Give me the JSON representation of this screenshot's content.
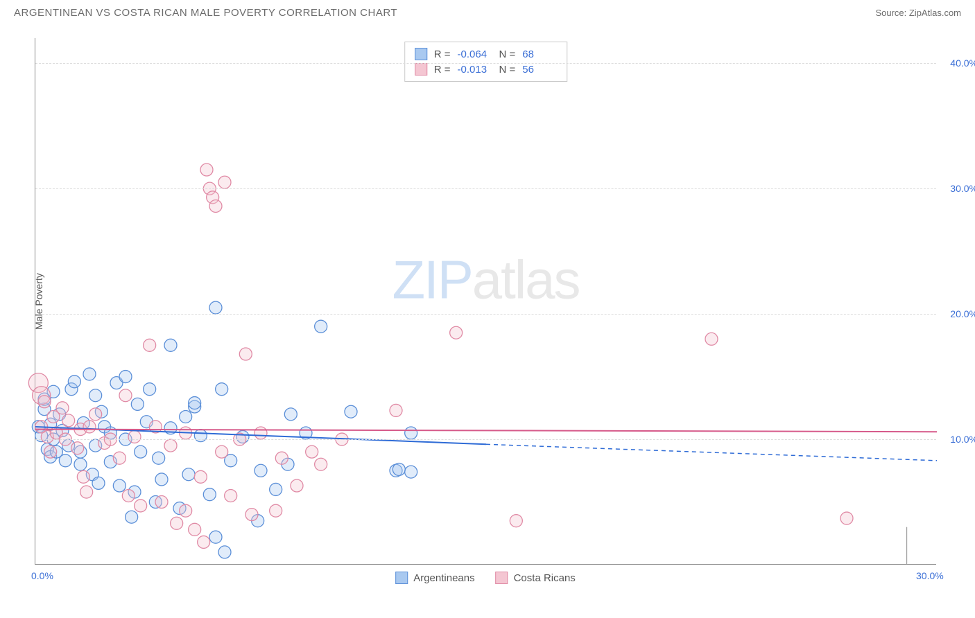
{
  "title": "ARGENTINEAN VS COSTA RICAN MALE POVERTY CORRELATION CHART",
  "source": "Source: ZipAtlas.com",
  "watermark_zip": "ZIP",
  "watermark_atlas": "atlas",
  "y_axis_label": "Male Poverty",
  "chart": {
    "type": "scatter",
    "xlim": [
      0,
      30
    ],
    "ylim": [
      0,
      42
    ],
    "x_ticks": [
      {
        "val": 0,
        "label": "0.0%"
      },
      {
        "val": 30,
        "label": "30.0%"
      }
    ],
    "y_ticks": [
      {
        "val": 10,
        "label": "10.0%"
      },
      {
        "val": 20,
        "label": "20.0%"
      },
      {
        "val": 30,
        "label": "30.0%"
      },
      {
        "val": 40,
        "label": "40.0%"
      }
    ],
    "background_color": "#ffffff",
    "grid_color": "#dcdcdc",
    "marker_radius": 9,
    "marker_fill_opacity": 0.35,
    "marker_stroke_width": 1.3,
    "series": [
      {
        "name": "Argentineans",
        "color_fill": "#a9c9f0",
        "color_stroke": "#5b8fd8",
        "trend": {
          "y1": 11.0,
          "y2_at_x15": 9.6,
          "y_end": 8.3,
          "solid_until_x": 15,
          "color": "#2e6bd6",
          "width": 2
        },
        "stats": {
          "R": "-0.064",
          "N": "68"
        },
        "points": [
          {
            "x": 0.1,
            "y": 11.0
          },
          {
            "x": 0.2,
            "y": 10.3
          },
          {
            "x": 0.3,
            "y": 12.4
          },
          {
            "x": 0.3,
            "y": 13.2
          },
          {
            "x": 0.4,
            "y": 9.2
          },
          {
            "x": 0.5,
            "y": 11.2
          },
          {
            "x": 0.5,
            "y": 8.6
          },
          {
            "x": 0.6,
            "y": 10.0
          },
          {
            "x": 0.6,
            "y": 13.8
          },
          {
            "x": 0.7,
            "y": 9.0
          },
          {
            "x": 0.8,
            "y": 12.0
          },
          {
            "x": 0.9,
            "y": 10.7
          },
          {
            "x": 1.0,
            "y": 8.3
          },
          {
            "x": 1.1,
            "y": 9.5
          },
          {
            "x": 1.2,
            "y": 14.0
          },
          {
            "x": 1.3,
            "y": 14.6
          },
          {
            "x": 1.5,
            "y": 9.0
          },
          {
            "x": 1.5,
            "y": 8.0
          },
          {
            "x": 1.6,
            "y": 11.3
          },
          {
            "x": 1.8,
            "y": 15.2
          },
          {
            "x": 1.9,
            "y": 7.2
          },
          {
            "x": 2.0,
            "y": 13.5
          },
          {
            "x": 2.0,
            "y": 9.5
          },
          {
            "x": 2.1,
            "y": 6.5
          },
          {
            "x": 2.2,
            "y": 12.2
          },
          {
            "x": 2.3,
            "y": 11.0
          },
          {
            "x": 2.5,
            "y": 10.5
          },
          {
            "x": 2.5,
            "y": 8.2
          },
          {
            "x": 2.7,
            "y": 14.5
          },
          {
            "x": 2.8,
            "y": 6.3
          },
          {
            "x": 3.0,
            "y": 15.0
          },
          {
            "x": 3.0,
            "y": 10.0
          },
          {
            "x": 3.2,
            "y": 3.8
          },
          {
            "x": 3.3,
            "y": 5.8
          },
          {
            "x": 3.4,
            "y": 12.8
          },
          {
            "x": 3.5,
            "y": 9.0
          },
          {
            "x": 3.7,
            "y": 11.4
          },
          {
            "x": 3.8,
            "y": 14.0
          },
          {
            "x": 4.0,
            "y": 5.0
          },
          {
            "x": 4.1,
            "y": 8.5
          },
          {
            "x": 4.2,
            "y": 6.8
          },
          {
            "x": 4.5,
            "y": 10.9
          },
          {
            "x": 4.5,
            "y": 17.5
          },
          {
            "x": 4.8,
            "y": 4.5
          },
          {
            "x": 5.0,
            "y": 11.8
          },
          {
            "x": 5.1,
            "y": 7.2
          },
          {
            "x": 5.3,
            "y": 12.6
          },
          {
            "x": 5.3,
            "y": 12.9
          },
          {
            "x": 5.5,
            "y": 10.3
          },
          {
            "x": 5.8,
            "y": 5.6
          },
          {
            "x": 6.0,
            "y": 20.5
          },
          {
            "x": 6.0,
            "y": 2.2
          },
          {
            "x": 6.2,
            "y": 14.0
          },
          {
            "x": 6.3,
            "y": 1.0
          },
          {
            "x": 6.5,
            "y": 8.3
          },
          {
            "x": 6.9,
            "y": 10.2
          },
          {
            "x": 7.4,
            "y": 3.5
          },
          {
            "x": 7.5,
            "y": 7.5
          },
          {
            "x": 8.0,
            "y": 6.0
          },
          {
            "x": 8.4,
            "y": 8.0
          },
          {
            "x": 8.5,
            "y": 12.0
          },
          {
            "x": 9.0,
            "y": 10.5
          },
          {
            "x": 9.5,
            "y": 19.0
          },
          {
            "x": 10.5,
            "y": 12.2
          },
          {
            "x": 12.0,
            "y": 7.5
          },
          {
            "x": 12.1,
            "y": 7.6
          },
          {
            "x": 12.5,
            "y": 10.5
          },
          {
            "x": 12.5,
            "y": 7.4
          }
        ]
      },
      {
        "name": "Costa Ricans",
        "color_fill": "#f4c6d2",
        "color_stroke": "#e08aa5",
        "trend": {
          "y1": 10.8,
          "y2_at_x15": 10.7,
          "y_end": 10.6,
          "solid_until_x": 30,
          "color": "#d65a8a",
          "width": 2
        },
        "stats": {
          "R": "-0.013",
          "N": "56"
        },
        "points": [
          {
            "x": 0.1,
            "y": 14.5,
            "r": 14
          },
          {
            "x": 0.2,
            "y": 13.5,
            "r": 13
          },
          {
            "x": 0.2,
            "y": 11.0
          },
          {
            "x": 0.3,
            "y": 13.0
          },
          {
            "x": 0.4,
            "y": 10.2
          },
          {
            "x": 0.5,
            "y": 9.0
          },
          {
            "x": 0.6,
            "y": 11.8
          },
          {
            "x": 0.7,
            "y": 10.5
          },
          {
            "x": 0.9,
            "y": 12.5
          },
          {
            "x": 1.0,
            "y": 10.0
          },
          {
            "x": 1.1,
            "y": 11.5
          },
          {
            "x": 1.4,
            "y": 9.3
          },
          {
            "x": 1.5,
            "y": 10.8
          },
          {
            "x": 1.6,
            "y": 7.0
          },
          {
            "x": 1.7,
            "y": 5.8
          },
          {
            "x": 1.8,
            "y": 11.0
          },
          {
            "x": 2.0,
            "y": 12.0
          },
          {
            "x": 2.3,
            "y": 9.7
          },
          {
            "x": 2.5,
            "y": 10.0
          },
          {
            "x": 2.8,
            "y": 8.5
          },
          {
            "x": 3.0,
            "y": 13.5
          },
          {
            "x": 3.1,
            "y": 5.5
          },
          {
            "x": 3.3,
            "y": 10.2
          },
          {
            "x": 3.5,
            "y": 4.7
          },
          {
            "x": 3.8,
            "y": 17.5
          },
          {
            "x": 4.0,
            "y": 11.0
          },
          {
            "x": 4.2,
            "y": 5.0
          },
          {
            "x": 4.5,
            "y": 9.5
          },
          {
            "x": 4.7,
            "y": 3.3
          },
          {
            "x": 5.0,
            "y": 10.5
          },
          {
            "x": 5.0,
            "y": 4.3
          },
          {
            "x": 5.3,
            "y": 2.8
          },
          {
            "x": 5.5,
            "y": 7.0
          },
          {
            "x": 5.6,
            "y": 1.8
          },
          {
            "x": 5.7,
            "y": 31.5
          },
          {
            "x": 5.8,
            "y": 30.0
          },
          {
            "x": 5.9,
            "y": 29.3
          },
          {
            "x": 6.0,
            "y": 28.6
          },
          {
            "x": 6.2,
            "y": 9.0
          },
          {
            "x": 6.3,
            "y": 30.5
          },
          {
            "x": 6.5,
            "y": 5.5
          },
          {
            "x": 6.8,
            "y": 10.0
          },
          {
            "x": 7.0,
            "y": 16.8
          },
          {
            "x": 7.2,
            "y": 4.0
          },
          {
            "x": 7.5,
            "y": 10.5
          },
          {
            "x": 8.0,
            "y": 4.3
          },
          {
            "x": 8.2,
            "y": 8.5
          },
          {
            "x": 8.7,
            "y": 6.3
          },
          {
            "x": 9.2,
            "y": 9.0
          },
          {
            "x": 9.5,
            "y": 8.0
          },
          {
            "x": 10.2,
            "y": 10.0
          },
          {
            "x": 12.0,
            "y": 12.3
          },
          {
            "x": 14.0,
            "y": 18.5
          },
          {
            "x": 16.0,
            "y": 3.5
          },
          {
            "x": 22.5,
            "y": 18.0
          },
          {
            "x": 27.0,
            "y": 3.7
          }
        ]
      }
    ]
  },
  "stats_box": {
    "R_label": "R =",
    "N_label": "N ="
  },
  "legend": {
    "series1_label": "Argentineans",
    "series2_label": "Costa Ricans"
  }
}
